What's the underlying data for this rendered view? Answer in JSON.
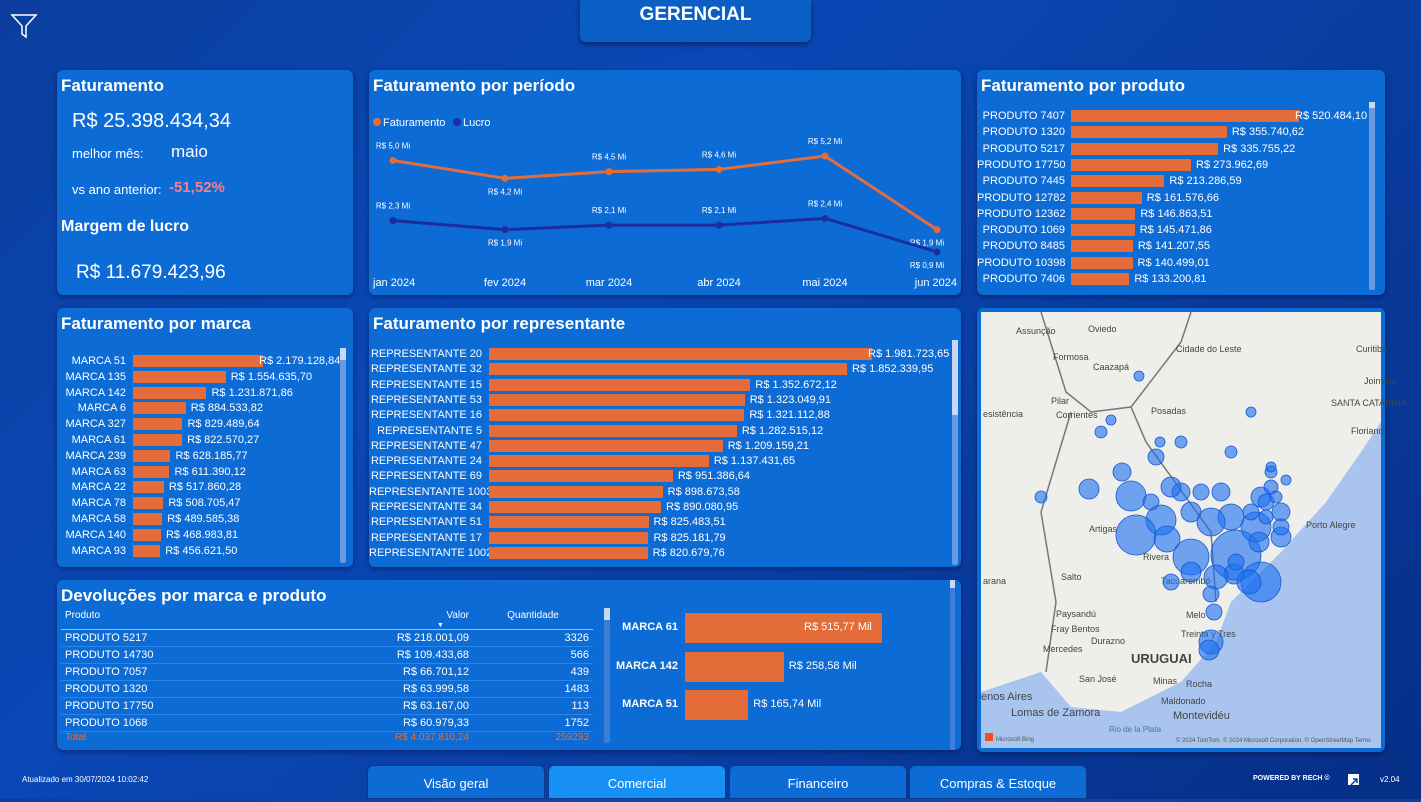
{
  "header": {
    "title": "GERENCIAL",
    "filter_icon": "funnel-icon"
  },
  "kpi": {
    "title": "Faturamento",
    "total": "R$ 25.398.434,34",
    "best_month_label": "melhor mês:",
    "best_month": "maio",
    "yoy_label": "vs ano anterior:",
    "yoy": "-51,52%",
    "yoy_color": "#f7808a",
    "margin_title": "Margem de lucro",
    "margin": "R$ 11.679.423,96"
  },
  "periodo": {
    "title": "Faturamento por período",
    "chart_data": {
      "type": "line",
      "categories": [
        "jan 2024",
        "fev 2024",
        "mar 2024",
        "abr 2024",
        "mai 2024",
        "jun 2024"
      ],
      "series": [
        {
          "name": "Faturamento",
          "color": "#e46c39",
          "values": [
            5.0,
            4.2,
            4.5,
            4.6,
            5.2,
            1.9
          ],
          "labels": [
            "R$ 5,0 Mi",
            "R$ 4,2 Mi",
            "R$ 4,5 Mi",
            "R$ 4,6 Mi",
            "R$ 5,2 Mi",
            "R$ 1,9 Mi"
          ]
        },
        {
          "name": "Lucro",
          "color": "#1a2ea0",
          "values": [
            2.3,
            1.9,
            2.1,
            2.1,
            2.4,
            0.9
          ],
          "labels": [
            "R$ 2,3 Mi",
            "R$ 1,9 Mi",
            "R$ 2,1 Mi",
            "R$ 2,1 Mi",
            "R$ 2,4 Mi",
            "R$ 0,9 Mi"
          ]
        }
      ],
      "unit": "R$ Mi",
      "legend": "top-left",
      "grid": false
    }
  },
  "produto": {
    "title": "Faturamento por produto",
    "chart_data": {
      "type": "bar",
      "orientation": "horizontal",
      "categories": [
        "PRODUTO 7407",
        "PRODUTO 1320",
        "PRODUTO 5217",
        "PRODUTO 17750",
        "PRODUTO 7445",
        "PRODUTO 12782",
        "PRODUTO 12362",
        "PRODUTO 1069",
        "PRODUTO 8485",
        "PRODUTO 10398",
        "PRODUTO 7406"
      ],
      "values": [
        520484.1,
        355740.62,
        335755.22,
        273962.69,
        213286.59,
        161576.66,
        146863.51,
        145471.86,
        141207.55,
        140499.01,
        133200.81
      ],
      "labels": [
        "R$ 520.484,10",
        "R$ 355.740,62",
        "R$ 335.755,22",
        "R$ 273.962,69",
        "R$ 213.286,59",
        "R$ 161.576,66",
        "R$ 146.863,51",
        "R$ 145.471,86",
        "R$ 141.207,55",
        "R$ 140.499,01",
        "R$ 133.200,81"
      ],
      "color": "#e46c39"
    }
  },
  "marca": {
    "title": "Faturamento por marca",
    "chart_data": {
      "type": "bar",
      "orientation": "horizontal",
      "categories": [
        "MARCA 51",
        "MARCA 135",
        "MARCA 142",
        "MARCA 6",
        "MARCA 327",
        "MARCA 61",
        "MARCA 239",
        "MARCA 63",
        "MARCA 22",
        "MARCA 78",
        "MARCA 58",
        "MARCA 140",
        "MARCA 93"
      ],
      "values": [
        2179128.84,
        1554635.7,
        1231871.86,
        884533.82,
        829489.64,
        822570.27,
        628185.77,
        611390.12,
        517860.28,
        508705.47,
        489585.38,
        468983.81,
        456621.5
      ],
      "labels": [
        "R$ 2.179.128,84",
        "R$ 1.554.635,70",
        "R$ 1.231.871,86",
        "R$ 884.533,82",
        "R$ 829.489,64",
        "R$ 822.570,27",
        "R$ 628.185,77",
        "R$ 611.390,12",
        "R$ 517.860,28",
        "R$ 508.705,47",
        "R$ 489.585,38",
        "R$ 468.983,81",
        "R$ 456.621,50"
      ],
      "color": "#e46c39"
    }
  },
  "representante": {
    "title": "Faturamento por representante",
    "chart_data": {
      "type": "bar",
      "orientation": "horizontal",
      "categories": [
        "REPRESENTANTE 20",
        "REPRESENTANTE 32",
        "REPRESENTANTE 15",
        "REPRESENTANTE 53",
        "REPRESENTANTE 16",
        "REPRESENTANTE 5",
        "REPRESENTANTE 47",
        "REPRESENTANTE 24",
        "REPRESENTANTE 69",
        "REPRESENTANTE 1003",
        "REPRESENTANTE 34",
        "REPRESENTANTE 51",
        "REPRESENTANTE 17",
        "REPRESENTANTE 1002"
      ],
      "values": [
        1981723.65,
        1852339.95,
        1352672.12,
        1323049.91,
        1321112.88,
        1282515.12,
        1209159.21,
        1137431.65,
        951386.64,
        898673.58,
        890080.95,
        825483.51,
        825181.79,
        820679.76
      ],
      "labels": [
        "R$ 1.981.723,65",
        "R$ 1.852.339,95",
        "R$ 1.352.672,12",
        "R$ 1.323.049,91",
        "R$ 1.321.112,88",
        "R$ 1.282.515,12",
        "R$ 1.209.159,21",
        "R$ 1.137.431,65",
        "R$ 951.386,64",
        "R$ 898.673,58",
        "R$ 890.080,95",
        "R$ 825.483,51",
        "R$ 825.181,79",
        "R$ 820.679,76"
      ],
      "color": "#e46c39"
    }
  },
  "devolucoes": {
    "title": "Devoluções por marca e produto",
    "columns": [
      "Produto",
      "Valor",
      "Quantidade"
    ],
    "rows": [
      [
        "PRODUTO 5217",
        "R$ 218.001,09",
        "3326"
      ],
      [
        "PRODUTO 14730",
        "R$ 109.433,68",
        "566"
      ],
      [
        "PRODUTO 7057",
        "R$ 66.701,12",
        "439"
      ],
      [
        "PRODUTO 1320",
        "R$ 63.999,58",
        "1483"
      ],
      [
        "PRODUTO 17750",
        "R$ 63.167,00",
        "113"
      ],
      [
        "PRODUTO 1068",
        "R$ 60.979,33",
        "1752"
      ]
    ],
    "total": [
      "Total",
      "R$ 4.037.810,24",
      "259293"
    ],
    "total_color": "#e46c39",
    "chart_data": {
      "type": "bar",
      "orientation": "horizontal",
      "categories": [
        "MARCA 61",
        "MARCA 142",
        "MARCA 51"
      ],
      "values": [
        515.77,
        258.58,
        165.74
      ],
      "labels": [
        "R$ 515,77 Mil",
        "R$ 258,58 Mil",
        "R$ 165,74 Mil"
      ],
      "unit": "R$ Mil",
      "color": "#e46c39"
    }
  },
  "map": {
    "labels": [
      "Assunção",
      "Oviedo",
      "Cidade do Leste",
      "Curitiba",
      "Formosa",
      "Caazapá",
      "Joinville",
      "Pilar",
      "SANTA CATARINA",
      "esistência",
      "Corrientes",
      "Posadas",
      "Floriano",
      "Artigas",
      "Rivera",
      "Porto Alegre",
      "Salto",
      "Tacuarembó",
      "arana",
      "Paysandú",
      "Melo",
      "Fray Bentos",
      "Treinta y Tres",
      "Durazno",
      "Mercedes",
      "URUGUAI",
      "San José",
      "Minas",
      "Rocha",
      "enos Aires",
      "Maldonado",
      "Lomas de Zamora",
      "Rio de la Plata",
      "Montevidéu"
    ],
    "attribution": "© 2024 TomTom, © 2024 Microsoft Corporation, © OpenStreetMap  Terms",
    "brand": "Microsoft Bing",
    "bubble_color": "#1a6ff0"
  },
  "tabs": [
    {
      "label": "Visão geral",
      "active": false
    },
    {
      "label": "Comercial",
      "active": true
    },
    {
      "label": "Financeiro",
      "active": false
    },
    {
      "label": "Compras & Estoque",
      "active": false
    }
  ],
  "footer": {
    "updated": "Atualizado em 30/07/2024 10:02:42",
    "powered": "POWERED BY RECH ©",
    "version": "v2.04"
  }
}
